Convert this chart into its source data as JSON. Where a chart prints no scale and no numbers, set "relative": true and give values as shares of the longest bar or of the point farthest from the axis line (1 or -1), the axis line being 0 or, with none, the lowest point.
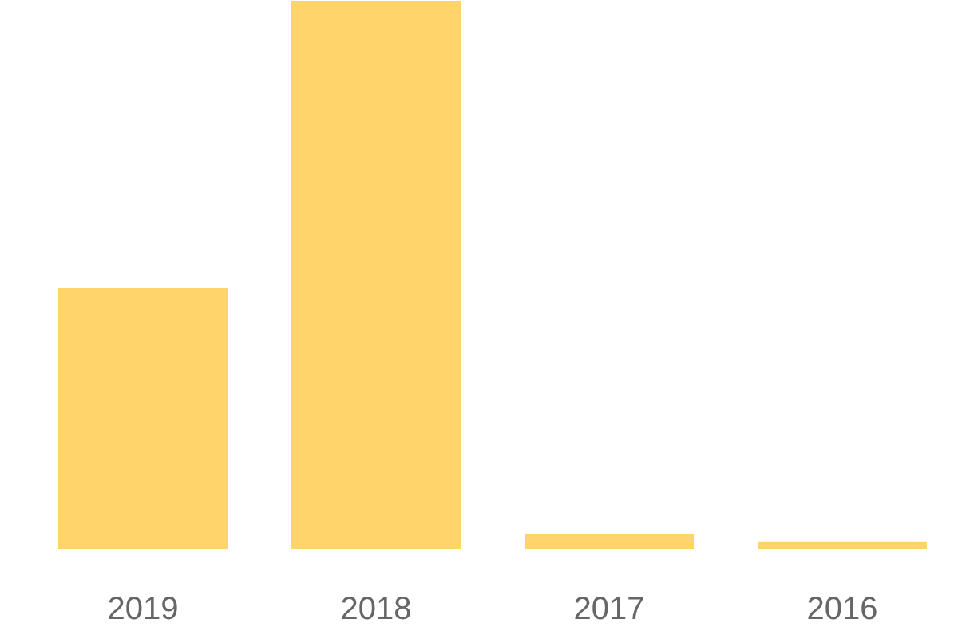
{
  "chart_data": {
    "type": "bar",
    "relative": true,
    "categories": [
      "2019",
      "2018",
      "2017",
      "2016"
    ],
    "values": [
      0.475,
      1,
      0.026,
      0.012
    ],
    "color": "#fed46b",
    "grid": false
  }
}
